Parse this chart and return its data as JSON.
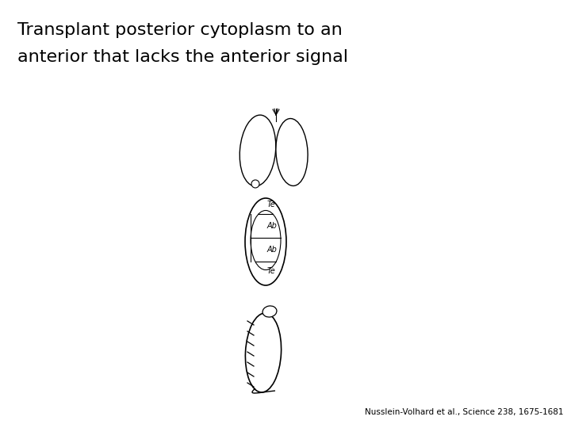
{
  "title_line1": "Transplant posterior cytoplasm to an",
  "title_line2": "anterior that lacks the anterior signal",
  "title_fontsize": 16,
  "citation": "Nusslein-Volhard et al., Science 238, 1675-1681",
  "citation_fontsize": 7.5,
  "bg_color": "#ffffff",
  "text_color": "#000000",
  "segment_labels": [
    "Te",
    "Ab",
    "Ab",
    "Te"
  ],
  "segment_label_fontsize": 7
}
